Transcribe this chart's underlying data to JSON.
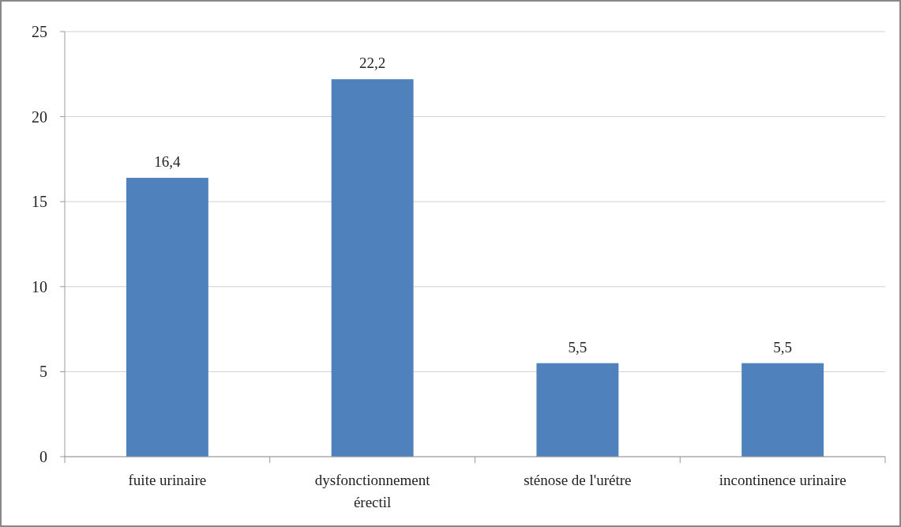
{
  "chart_data": {
    "type": "bar",
    "categories": [
      "fuite urinaire",
      "dysfonctionnement érectil",
      "sténose de l'urétre",
      "incontinence urinaire"
    ],
    "values": [
      16.4,
      22.2,
      5.5,
      5.5
    ],
    "value_labels": [
      "16,4",
      "22,2",
      "5,5",
      "5,5"
    ],
    "color": "#4f81bd",
    "ylim": [
      0,
      25
    ],
    "yticks": [
      0,
      5,
      10,
      15,
      20,
      25
    ],
    "grid": "y"
  }
}
